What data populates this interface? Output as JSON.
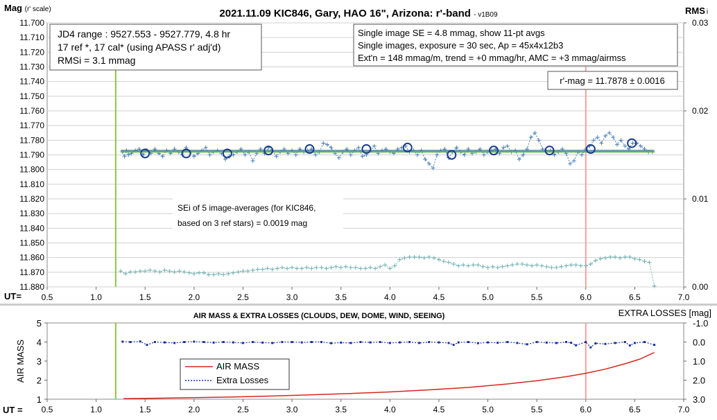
{
  "chart_data": [
    {
      "type": "scatter",
      "title": "2021.11.09 KIC846, Gary, HAO 16\", Arizona: r'-band",
      "version_tag": "- v1B09",
      "ylabel_main": "Mag",
      "ylabel_suffix": "(r' scale)",
      "y2label_main": "RMS",
      "y2label_suffix": "i",
      "xlabel": "UT=",
      "xlim": [
        0.5,
        7.0
      ],
      "xticks": [
        "0.5",
        "1.0",
        "1.5",
        "2.0",
        "2.5",
        "3.0",
        "3.5",
        "4.0",
        "4.5",
        "5.0",
        "5.5",
        "6.0",
        "6.5",
        "7.0"
      ],
      "ylim": [
        11.7,
        11.88
      ],
      "yticks": [
        "11.700",
        "11.710",
        "11.720",
        "11.730",
        "11.740",
        "11.750",
        "11.760",
        "11.770",
        "11.780",
        "11.790",
        "11.800",
        "11.810",
        "11.820",
        "11.830",
        "11.840",
        "11.850",
        "11.860",
        "11.870",
        "11.880"
      ],
      "y_inverted": true,
      "y2lim": [
        0.0,
        0.03
      ],
      "y2ticks": [
        "0.03",
        "0.02",
        "0.01",
        "0.00"
      ],
      "grid": "horizontal",
      "info_box_left": [
        "JD4 range : 9527.553 - 9527.779,  4.8  hr",
        "17 ref *, 17 cal* (using APASS r' adj'd)",
        "RMSi = 3.1 mmag"
      ],
      "info_box_right": [
        "Single image SE = 4.8 mmag, show  11-pt avgs",
        "Single images, exposure = 30 sec, Ap = 45x4x12b3",
        "Ext'n = 148 mmag/m, trend = +0  mmag/hr, AMC = +3 mmag/airmss"
      ],
      "result_box": "r'-mag = 11.7878 ± 0.0016",
      "sei_note": [
        "SEi of 5 image-averages (for KIC846,",
        "based on 3 ref stars) = 0.0019 mag"
      ],
      "markers": {
        "start_ut": 1.2,
        "end_ut": 6.0
      },
      "mean_mag": 11.7878,
      "series": [
        {
          "style": "plus-dotted",
          "color": "#4a7fb8",
          "x": [
            1.27,
            1.29,
            1.31,
            1.33,
            1.36,
            1.4,
            1.44,
            1.48,
            1.52,
            1.56,
            1.6,
            1.64,
            1.68,
            1.72,
            1.76,
            1.8,
            1.84,
            1.88,
            1.92,
            1.96,
            2.0,
            2.04,
            2.08,
            2.12,
            2.16,
            2.2,
            2.24,
            2.28,
            2.32,
            2.36,
            2.4,
            2.44,
            2.48,
            2.52,
            2.56,
            2.6,
            2.64,
            2.68,
            2.72,
            2.76,
            2.8,
            2.84,
            2.88,
            2.92,
            2.96,
            3.0,
            3.04,
            3.08,
            3.12,
            3.16,
            3.2,
            3.24,
            3.28,
            3.32,
            3.36,
            3.4,
            3.44,
            3.48,
            3.52,
            3.56,
            3.6,
            3.64,
            3.68,
            3.72,
            3.76,
            3.8,
            3.84,
            3.88,
            3.92,
            3.96,
            4.0,
            4.04,
            4.08,
            4.12,
            4.16,
            4.2,
            4.24,
            4.28,
            4.32,
            4.36,
            4.4,
            4.44,
            4.48,
            4.52,
            4.56,
            4.6,
            4.64,
            4.68,
            4.72,
            4.76,
            4.8,
            4.84,
            4.88,
            4.92,
            4.96,
            5.0,
            5.04,
            5.08,
            5.12,
            5.16,
            5.2,
            5.24,
            5.28,
            5.32,
            5.36,
            5.4,
            5.44,
            5.48,
            5.52,
            5.56,
            5.6,
            5.64,
            5.68,
            5.72,
            5.76,
            5.8,
            5.84,
            5.88,
            5.92,
            5.96,
            6.0,
            6.04,
            6.08,
            6.12,
            6.16,
            6.2,
            6.24,
            6.28,
            6.32,
            6.36,
            6.4,
            6.44,
            6.48,
            6.52,
            6.56,
            6.6,
            6.64,
            6.68
          ],
          "y": [
            11.788,
            11.791,
            11.787,
            11.79,
            11.789,
            11.787,
            11.786,
            11.79,
            11.787,
            11.789,
            11.786,
            11.789,
            11.791,
            11.787,
            11.789,
            11.786,
            11.788,
            11.79,
            11.785,
            11.788,
            11.791,
            11.789,
            11.787,
            11.785,
            11.79,
            11.788,
            11.787,
            11.789,
            11.793,
            11.791,
            11.79,
            11.788,
            11.786,
            11.79,
            11.788,
            11.794,
            11.789,
            11.786,
            11.789,
            11.785,
            11.787,
            11.791,
            11.788,
            11.786,
            11.789,
            11.787,
            11.79,
            11.786,
            11.788,
            11.787,
            11.786,
            11.79,
            11.788,
            11.782,
            11.783,
            11.785,
            11.789,
            11.792,
            11.788,
            11.786,
            11.79,
            11.787,
            11.785,
            11.791,
            11.79,
            11.787,
            11.784,
            11.789,
            11.787,
            11.786,
            11.788,
            11.789,
            11.786,
            11.785,
            11.784,
            11.788,
            11.787,
            11.79,
            11.787,
            11.793,
            11.796,
            11.799,
            11.79,
            11.787,
            11.786,
            11.792,
            11.788,
            11.785,
            11.788,
            11.79,
            11.786,
            11.789,
            11.788,
            11.786,
            11.79,
            11.788,
            11.787,
            11.786,
            11.789,
            11.785,
            11.784,
            11.788,
            11.787,
            11.793,
            11.79,
            11.786,
            11.778,
            11.775,
            11.78,
            11.786,
            11.788,
            11.787,
            11.79,
            11.788,
            11.786,
            11.789,
            11.796,
            11.794,
            11.788,
            11.79,
            11.786,
            11.784,
            11.78,
            11.778,
            11.782,
            11.777,
            11.775,
            11.778,
            11.783,
            11.78,
            11.784,
            11.786,
            11.782,
            11.782,
            11.784,
            11.786,
            11.788,
            11.788
          ],
          "name": ""
        },
        {
          "style": "open-circle",
          "color": "#1c3d8c",
          "x": [
            1.5,
            1.92,
            2.34,
            2.76,
            3.18,
            3.76,
            4.18,
            4.63,
            5.06,
            5.63,
            6.05,
            6.47
          ],
          "y": [
            11.789,
            11.789,
            11.789,
            11.787,
            11.786,
            11.786,
            11.785,
            11.79,
            11.787,
            11.787,
            11.786,
            11.782
          ],
          "name": ""
        },
        {
          "style": "plus-dotted",
          "color": "#6fb0b0",
          "axis": "rms",
          "x": [
            1.25,
            1.3,
            1.35,
            1.4,
            1.45,
            1.5,
            1.55,
            1.6,
            1.65,
            1.7,
            1.75,
            1.8,
            1.85,
            1.9,
            1.95,
            2.0,
            2.05,
            2.1,
            2.15,
            2.2,
            2.25,
            2.3,
            2.35,
            2.4,
            2.45,
            2.5,
            2.55,
            2.6,
            2.65,
            2.7,
            2.75,
            2.8,
            2.85,
            2.9,
            2.95,
            3.0,
            3.05,
            3.1,
            3.15,
            3.2,
            3.25,
            3.3,
            3.35,
            3.4,
            3.45,
            3.5,
            3.55,
            3.6,
            3.65,
            3.7,
            3.75,
            3.8,
            3.85,
            3.9,
            3.95,
            4.0,
            4.05,
            4.1,
            4.15,
            4.2,
            4.25,
            4.3,
            4.35,
            4.4,
            4.45,
            4.5,
            4.55,
            4.6,
            4.65,
            4.7,
            4.75,
            4.8,
            4.85,
            4.9,
            4.95,
            5.0,
            5.05,
            5.1,
            5.15,
            5.2,
            5.25,
            5.3,
            5.35,
            5.4,
            5.45,
            5.5,
            5.55,
            5.6,
            5.65,
            5.7,
            5.75,
            5.8,
            5.85,
            5.9,
            5.95,
            6.0,
            6.05,
            6.1,
            6.15,
            6.2,
            6.25,
            6.3,
            6.35,
            6.4,
            6.45,
            6.5,
            6.55,
            6.6,
            6.65,
            6.7
          ],
          "y": [
            0.0018,
            0.0015,
            0.0017,
            0.0017,
            0.0018,
            0.0018,
            0.0019,
            0.0018,
            0.0017,
            0.0019,
            0.0018,
            0.0017,
            0.0018,
            0.0017,
            0.0016,
            0.0015,
            0.0016,
            0.0016,
            0.0014,
            0.0014,
            0.0015,
            0.0014,
            0.0015,
            0.0016,
            0.0017,
            0.0018,
            0.0018,
            0.0019,
            0.002,
            0.002,
            0.0021,
            0.002,
            0.0021,
            0.0022,
            0.0021,
            0.0022,
            0.0021,
            0.0021,
            0.0022,
            0.0021,
            0.0022,
            0.0022,
            0.0021,
            0.0022,
            0.0023,
            0.0022,
            0.0023,
            0.0022,
            0.0022,
            0.0021,
            0.0021,
            0.0022,
            0.0021,
            0.0023,
            0.0025,
            0.0021,
            0.0024,
            0.0031,
            0.0033,
            0.0034,
            0.0034,
            0.0034,
            0.0033,
            0.0034,
            0.0033,
            0.0031,
            0.0029,
            0.0028,
            0.0026,
            0.0024,
            0.0025,
            0.0024,
            0.0025,
            0.0025,
            0.0023,
            0.0022,
            0.0023,
            0.0022,
            0.0023,
            0.0024,
            0.0025,
            0.0026,
            0.0026,
            0.0025,
            0.0024,
            0.0025,
            0.0024,
            0.0023,
            0.0022,
            0.0022,
            0.0023,
            0.0024,
            0.0025,
            0.0025,
            0.0024,
            0.0024,
            0.0026,
            0.003,
            0.0032,
            0.0033,
            0.0034,
            0.0034,
            0.0033,
            0.0034,
            0.0034,
            0.0032,
            0.0031,
            0.0029,
            0.0028,
            0.0001
          ],
          "name": ""
        }
      ]
    },
    {
      "type": "line",
      "title": "AIR MASS & EXTRA LOSSES (CLOUDS, DEW, DOME, WIND, SEEING)",
      "ylabel": "AIR MASS",
      "y2label": "EXTRA LOSSES [mag]",
      "xlabel": "UT =",
      "xlim": [
        0.5,
        7.0
      ],
      "xticks": [
        "0.5",
        "1.0",
        "1.5",
        "2.0",
        "2.5",
        "3.0",
        "3.5",
        "4.0",
        "4.5",
        "5.0",
        "5.5",
        "6.0",
        "6.5",
        "7.0"
      ],
      "ylim": [
        1,
        5
      ],
      "yticks": [
        "5",
        "4",
        "3",
        "2",
        "1"
      ],
      "y2lim": [
        -1.0,
        3.0
      ],
      "y2ticks": [
        "-1.0",
        "0.0",
        "1.0",
        "2.0",
        "3.0"
      ],
      "markers": {
        "start_ut": 1.2,
        "end_ut": 6.0
      },
      "legend": {
        "placement": "center-left",
        "entries": [
          "AIR MASS",
          "Extra Losses"
        ]
      },
      "series": [
        {
          "name": "AIR MASS",
          "color": "#d9261c",
          "style": "solid",
          "x": [
            1.28,
            1.6,
            2.0,
            2.4,
            2.8,
            3.2,
            3.6,
            4.0,
            4.4,
            4.8,
            5.2,
            5.5,
            5.8,
            6.0,
            6.2,
            6.4,
            6.55,
            6.7
          ],
          "y": [
            1.03,
            1.05,
            1.08,
            1.12,
            1.17,
            1.23,
            1.3,
            1.38,
            1.49,
            1.62,
            1.8,
            1.97,
            2.18,
            2.36,
            2.58,
            2.86,
            3.1,
            3.45
          ]
        },
        {
          "name": "Extra Losses",
          "color": "#1a2f9c",
          "style": "dotted",
          "axis": "losses",
          "x": [
            1.27,
            1.35,
            1.45,
            1.52,
            1.6,
            1.7,
            1.8,
            1.9,
            2.0,
            2.1,
            2.2,
            2.3,
            2.4,
            2.5,
            2.6,
            2.7,
            2.8,
            2.9,
            3.0,
            3.1,
            3.2,
            3.3,
            3.4,
            3.5,
            3.6,
            3.7,
            3.8,
            3.9,
            4.0,
            4.1,
            4.2,
            4.3,
            4.4,
            4.5,
            4.6,
            4.65,
            4.7,
            4.8,
            4.9,
            5.0,
            5.1,
            5.2,
            5.3,
            5.4,
            5.5,
            5.6,
            5.7,
            5.8,
            5.85,
            5.9,
            6.0,
            6.05,
            6.1,
            6.2,
            6.3,
            6.4,
            6.45,
            6.5,
            6.6,
            6.7
          ],
          "y": [
            -0.02,
            0.0,
            -0.03,
            0.15,
            0.0,
            0.02,
            0.05,
            0.0,
            -0.02,
            0.0,
            0.03,
            0.0,
            0.02,
            0.05,
            0.0,
            0.03,
            0.05,
            0.0,
            0.0,
            0.02,
            0.0,
            0.0,
            0.06,
            0.03,
            0.05,
            0.0,
            0.02,
            0.0,
            0.05,
            0.02,
            0.0,
            0.05,
            0.0,
            0.02,
            0.05,
            0.15,
            0.02,
            0.0,
            0.06,
            0.02,
            0.04,
            0.0,
            0.05,
            0.12,
            0.0,
            0.03,
            0.05,
            0.0,
            0.04,
            0.17,
            0.0,
            0.28,
            0.07,
            0.1,
            0.05,
            0.0,
            0.18,
            0.05,
            0.0,
            0.15
          ]
        }
      ]
    }
  ]
}
